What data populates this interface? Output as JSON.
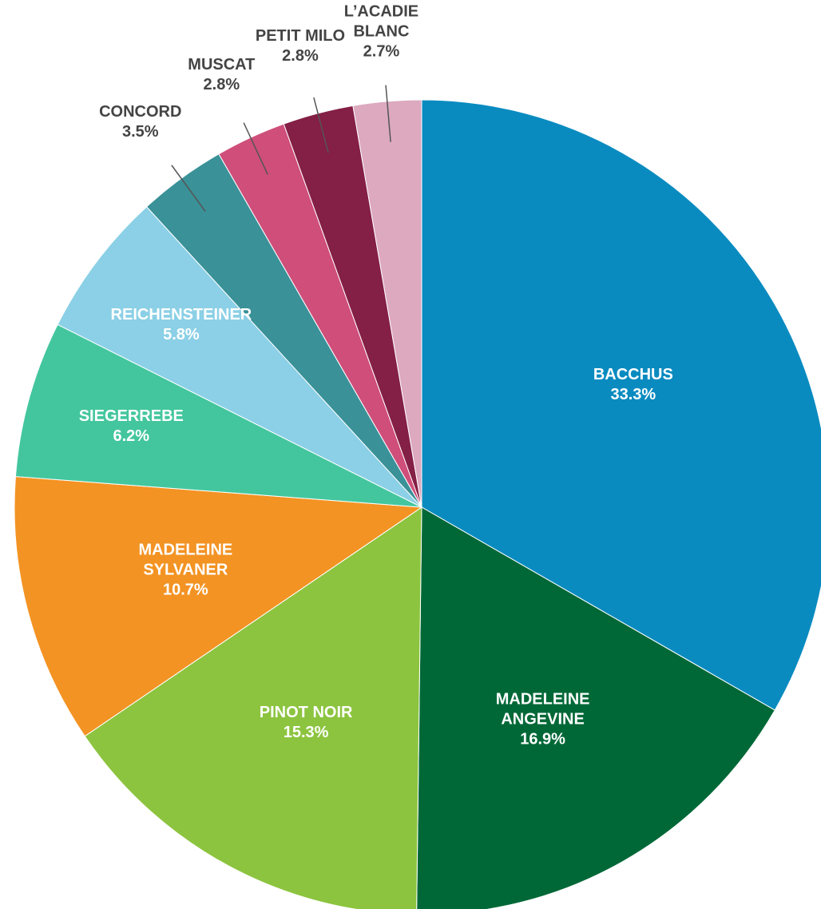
{
  "chart_data": {
    "type": "pie",
    "categories": [
      "BACCHUS",
      "MADELEINE\nANGEVINE",
      "PINOT NOIR",
      "MADELEINE\nSYLVANER",
      "SIEGERREBE",
      "REICHENSTEINER",
      "CONCORD",
      "MUSCAT",
      "PETIT MILO",
      "L’ACADIE\nBLANC"
    ],
    "values": [
      33.3,
      16.9,
      15.3,
      10.7,
      6.2,
      5.8,
      3.5,
      2.8,
      2.8,
      2.7
    ],
    "value_labels": [
      "33.3%",
      "16.9%",
      "15.3%",
      "10.7%",
      "6.2%",
      "5.8%",
      "3.5%",
      "2.8%",
      "2.8%",
      "2.7%"
    ],
    "colors": [
      "#0a8bc0",
      "#006837",
      "#8cc43f",
      "#f39323",
      "#43c69e",
      "#8bd0e6",
      "#3a9198",
      "#cf4e7a",
      "#841f45",
      "#dca9bf"
    ]
  }
}
